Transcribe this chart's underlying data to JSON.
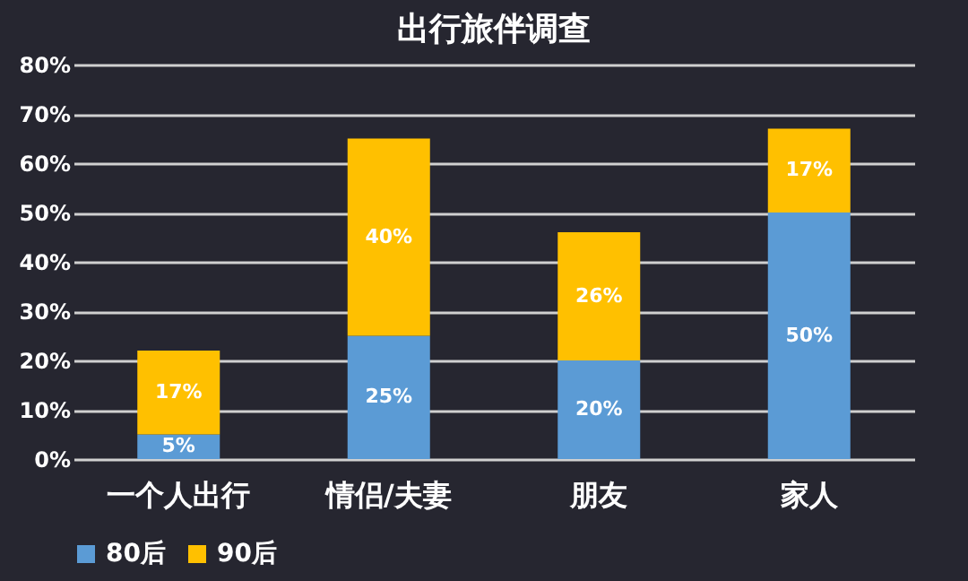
{
  "chart_data": {
    "type": "bar",
    "title": "出行旅伴调查",
    "categories": [
      "一个人出行",
      "情侣/夫妻",
      "朋友",
      "家人"
    ],
    "stacked": true,
    "series": [
      {
        "name": "80后",
        "color": "#5b9bd5",
        "values": [
          5,
          25,
          20,
          50
        ],
        "value_labels": [
          "5%",
          "25%",
          "20%",
          "50%"
        ]
      },
      {
        "name": "90后",
        "color": "#ffc000",
        "values": [
          17,
          40,
          26,
          17
        ],
        "value_labels": [
          "17%",
          "40%",
          "26%",
          "17%"
        ]
      }
    ],
    "ylim": [
      0,
      80
    ],
    "yticks": [
      {
        "value": 0,
        "label": "0%"
      },
      {
        "value": 10,
        "label": "10%"
      },
      {
        "value": 20,
        "label": "20%"
      },
      {
        "value": 30,
        "label": "30%"
      },
      {
        "value": 40,
        "label": "40%"
      },
      {
        "value": 50,
        "label": "50%"
      },
      {
        "value": 60,
        "label": "60%"
      },
      {
        "value": 70,
        "label": "70%"
      },
      {
        "value": 80,
        "label": "80%"
      }
    ],
    "grid": "y",
    "legend": "bottom"
  }
}
